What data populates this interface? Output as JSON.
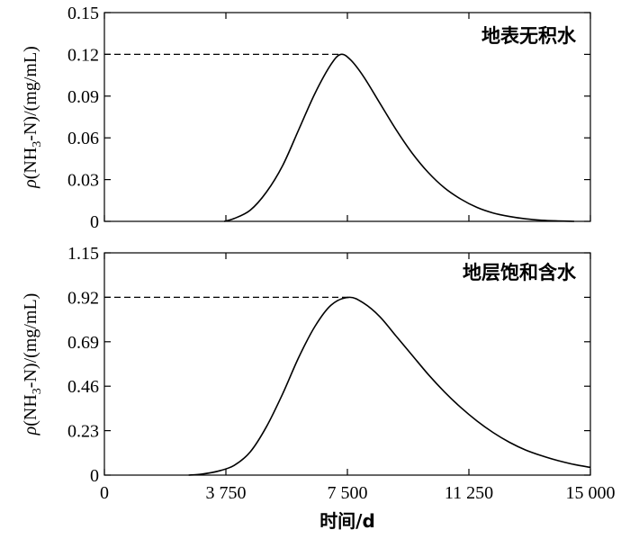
{
  "chart_data": [
    {
      "type": "line",
      "annotation": "地表无积水",
      "ylabel": "ρ(NH3-N)/(mg/mL)",
      "xlim": [
        0,
        15000
      ],
      "ylim": [
        0,
        0.15
      ],
      "yticks": [
        "0",
        "0.03",
        "0.06",
        "0.09",
        "0.12",
        "0.15"
      ],
      "ytick_values": [
        0,
        0.03,
        0.06,
        0.09,
        0.12,
        0.15
      ],
      "xtick_values": [
        0,
        3750,
        7500,
        11250,
        15000
      ],
      "grid": false,
      "peak_line": {
        "x": 7300,
        "y": 0.12,
        "style": "dashed"
      },
      "series": [
        {
          "x": [
            3700,
            4000,
            4500,
            5000,
            5500,
            6000,
            6500,
            7000,
            7300,
            7600,
            8000,
            8500,
            9000,
            9500,
            10000,
            10500,
            11000,
            11500,
            12000,
            12500,
            13000,
            13500,
            14000,
            14500
          ],
          "y": [
            0.0,
            0.002,
            0.008,
            0.021,
            0.04,
            0.066,
            0.092,
            0.113,
            0.12,
            0.116,
            0.104,
            0.085,
            0.066,
            0.049,
            0.035,
            0.024,
            0.016,
            0.01,
            0.006,
            0.0035,
            0.0018,
            0.0008,
            0.0003,
            0.0
          ]
        }
      ]
    },
    {
      "type": "line",
      "annotation": "地层饱和含水",
      "ylabel": "ρ(NH3-N)/(mg/mL)",
      "xlabel": "时间/d",
      "xlim": [
        0,
        15000
      ],
      "ylim": [
        0,
        1.15
      ],
      "yticks": [
        "0",
        "0.23",
        "0.46",
        "0.69",
        "0.92",
        "1.15"
      ],
      "ytick_values": [
        0,
        0.23,
        0.46,
        0.69,
        0.92,
        1.15
      ],
      "xticks": [
        "0",
        "3 750",
        "7 500",
        "11 250",
        "15 000"
      ],
      "xtick_values": [
        0,
        3750,
        7500,
        11250,
        15000
      ],
      "grid": false,
      "peak_line": {
        "x": 7550,
        "y": 0.92,
        "style": "dashed"
      },
      "series": [
        {
          "x": [
            2600,
            3000,
            3500,
            4000,
            4500,
            5000,
            5500,
            6000,
            6500,
            7000,
            7550,
            8000,
            8500,
            9000,
            9500,
            10000,
            10500,
            11000,
            11500,
            12000,
            12500,
            13000,
            13500,
            14000,
            14500,
            15000
          ],
          "y": [
            0.0,
            0.005,
            0.02,
            0.05,
            0.12,
            0.25,
            0.42,
            0.61,
            0.77,
            0.88,
            0.92,
            0.89,
            0.82,
            0.72,
            0.62,
            0.52,
            0.43,
            0.35,
            0.28,
            0.22,
            0.17,
            0.13,
            0.1,
            0.075,
            0.055,
            0.04
          ]
        }
      ]
    }
  ]
}
